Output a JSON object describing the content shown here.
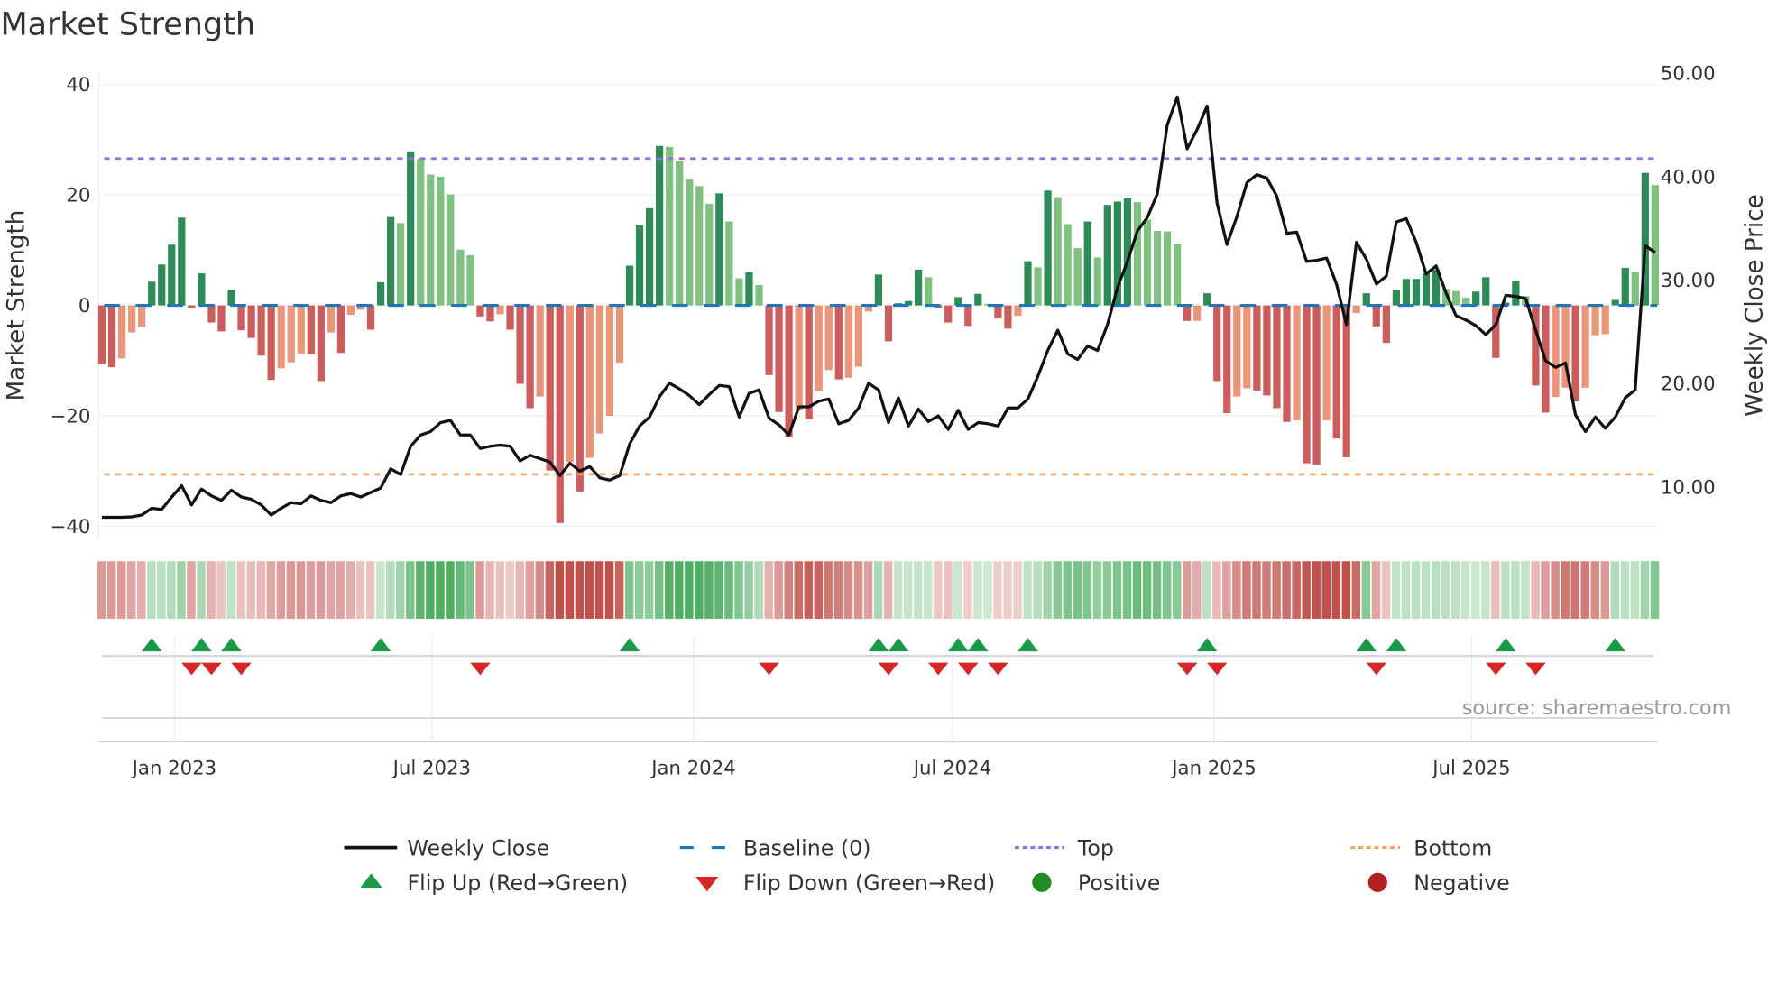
{
  "title": "Market Strength",
  "source": "source: sharemaestro.com",
  "chart_data": {
    "type": "bar+line",
    "title": "Market Strength",
    "ylabel": "Market Strength",
    "y2label": "Weekly Close Price",
    "ylim": [
      -42,
      42
    ],
    "y2lim": [
      5,
      50
    ],
    "yticks": [
      {
        "v": 40,
        "label": "40"
      },
      {
        "v": 20,
        "label": "20"
      },
      {
        "v": 0,
        "label": "0"
      },
      {
        "v": -20,
        "label": "−20"
      },
      {
        "v": -40,
        "label": "−40"
      }
    ],
    "y2ticks": [
      {
        "v": 50,
        "label": "50.00"
      },
      {
        "v": 40,
        "label": "40.00"
      },
      {
        "v": 30,
        "label": "30.00"
      },
      {
        "v": 20,
        "label": "20.00"
      },
      {
        "v": 10,
        "label": "10.00"
      }
    ],
    "x_start": "2022-11-11",
    "x_interval_days": 7,
    "xticks": [
      {
        "date": "2023-01-01",
        "label": "Jan 2023"
      },
      {
        "date": "2023-07-01",
        "label": "Jul 2023"
      },
      {
        "date": "2024-01-01",
        "label": "Jan 2024"
      },
      {
        "date": "2024-07-01",
        "label": "Jul 2024"
      },
      {
        "date": "2025-01-01",
        "label": "Jan 2025"
      },
      {
        "date": "2025-07-01",
        "label": "Jul 2025"
      }
    ],
    "top": 26.6,
    "bottom": -30.6,
    "baseline": 0,
    "strength": [
      -10.6,
      -11.2,
      -9.6,
      -4.9,
      -3.9,
      4.3,
      7.4,
      11.0,
      15.9,
      -0.4,
      5.8,
      -3.1,
      -4.7,
      2.8,
      -4.5,
      -5.9,
      -9.1,
      -13.5,
      -11.4,
      -10.3,
      -8.7,
      -8.8,
      -13.7,
      -4.9,
      -8.6,
      -1.7,
      -0.8,
      -4.4,
      4.2,
      16.0,
      14.9,
      27.9,
      26.5,
      23.7,
      23.3,
      20.1,
      10.1,
      9.1,
      -2.0,
      -2.9,
      -1.6,
      -4.4,
      -14.2,
      -18.6,
      -16.5,
      -29.9,
      -39.4,
      -28.3,
      -33.7,
      -27.6,
      -23.2,
      -20.0,
      -10.4,
      7.2,
      14.5,
      17.6,
      28.9,
      28.7,
      26.1,
      22.8,
      21.6,
      18.4,
      20.3,
      15.2,
      4.9,
      6.0,
      3.7,
      -12.6,
      -19.3,
      -23.9,
      -19.0,
      -20.6,
      -15.5,
      -11.7,
      -13.4,
      -13.1,
      -11.1,
      -1.1,
      5.6,
      -6.5,
      0.4,
      0.8,
      6.5,
      5.1,
      -0.45,
      -3.1,
      1.5,
      -3.7,
      2.1,
      0.3,
      -2.3,
      -4.2,
      -1.9,
      8.0,
      6.9,
      20.8,
      19.6,
      14.7,
      10.4,
      15.2,
      8.7,
      18.2,
      18.8,
      19.4,
      18.7,
      15.5,
      13.5,
      13.4,
      11.1,
      -2.8,
      -2.8,
      2.2,
      -13.7,
      -19.5,
      -16.5,
      -15.0,
      -15.4,
      -16.3,
      -18.6,
      -21.1,
      -20.8,
      -28.6,
      -28.8,
      -20.8,
      -24.1,
      -27.5,
      -1.4,
      2.2,
      -3.8,
      -6.8,
      2.8,
      4.8,
      4.8,
      5.9,
      6.5,
      3.0,
      2.6,
      1.4,
      2.5,
      5.1,
      -9.5,
      0.5,
      4.4,
      1.7,
      -14.5,
      -19.4,
      -16.6,
      -14.9,
      -17.4,
      -14.9,
      -5.4,
      -5.2,
      1.0,
      6.8,
      6.0,
      24.0,
      21.8
    ],
    "weekly_close": [
      7.06,
      7.06,
      7.06,
      7.1,
      7.28,
      7.93,
      7.82,
      9.0,
      10.11,
      8.26,
      9.78,
      9.13,
      8.69,
      9.67,
      9.02,
      8.8,
      8.26,
      7.28,
      7.93,
      8.47,
      8.37,
      9.13,
      8.69,
      8.47,
      9.13,
      9.35,
      9.02,
      9.46,
      9.89,
      11.74,
      11.2,
      13.92,
      15.01,
      15.34,
      16.21,
      16.43,
      15.01,
      15.01,
      13.71,
      13.92,
      14.03,
      13.92,
      12.51,
      13.05,
      12.72,
      12.4,
      11.09,
      12.29,
      11.53,
      11.96,
      10.87,
      10.65,
      11.09,
      14.14,
      15.89,
      16.76,
      18.72,
      20.03,
      19.48,
      18.83,
      17.96,
      18.94,
      19.81,
      19.7,
      16.76,
      19.05,
      19.37,
      16.65,
      15.99,
      15.01,
      17.74,
      17.74,
      18.28,
      18.5,
      16.1,
      16.43,
      17.63,
      20.03,
      19.37,
      16.21,
      18.61,
      15.89,
      17.52,
      16.32,
      16.87,
      15.56,
      17.41,
      15.56,
      16.21,
      16.1,
      15.89,
      17.63,
      17.63,
      18.5,
      20.68,
      23.19,
      25.15,
      22.86,
      22.32,
      23.62,
      23.19,
      25.69,
      29.29,
      31.8,
      34.74,
      36.05,
      38.34,
      44.99,
      47.71,
      42.7,
      44.55,
      46.84,
      37.47,
      33.43,
      36.16,
      39.43,
      40.19,
      39.86,
      38.12,
      34.52,
      34.63,
      31.8,
      31.91,
      32.13,
      29.62,
      25.69,
      33.65,
      32.02,
      29.62,
      30.38,
      35.61,
      35.94,
      33.65,
      30.6,
      31.36,
      28.75,
      26.57,
      26.13,
      25.59,
      24.71,
      25.69,
      28.53,
      28.42,
      28.2,
      25.15,
      22.21,
      21.55,
      21.99,
      16.98,
      15.34,
      16.76,
      15.67,
      16.76,
      18.61,
      19.37,
      33.32,
      32.67
    ],
    "legend_placement": "bottom",
    "legend": [
      {
        "key": "close",
        "label": "Weekly Close"
      },
      {
        "key": "baseline",
        "label": "Baseline (0)"
      },
      {
        "key": "top",
        "label": "Top"
      },
      {
        "key": "bottom",
        "label": "Bottom"
      },
      {
        "key": "flipup",
        "label": "Flip Up (Red→Green)"
      },
      {
        "key": "flipdown",
        "label": "Flip Down (Green→Red)"
      },
      {
        "key": "pos",
        "label": "Positive"
      },
      {
        "key": "neg",
        "label": "Negative"
      }
    ],
    "colors": {
      "pos_rising": "#2e8b57",
      "pos_falling": "#80c080",
      "neg_falling": "#cd5c5c",
      "neg_rising": "#e9967a",
      "close": "#111111",
      "baseline": "#1f77b4",
      "top": "#9370db",
      "bottom": "#f4a460",
      "flipup": "#1a9a48",
      "flipdown": "#d62728",
      "positive": "#228b22",
      "negative": "#b22222",
      "strip_green": "#4fae62",
      "strip_red": "#c0504a"
    }
  }
}
